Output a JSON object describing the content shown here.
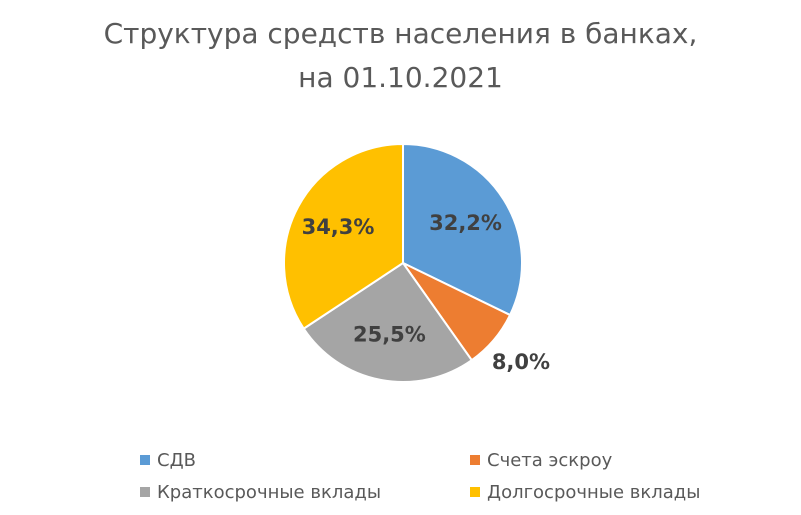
{
  "chart_data": {
    "type": "pie",
    "title": "Структура средств населения в банках, на 01.10.2021",
    "categories": [
      "СДВ",
      "Счета эскроу",
      "Краткосрочные вклады",
      "Долгосрочные вклады"
    ],
    "values": [
      32.2,
      8.0,
      25.5,
      34.3
    ],
    "value_labels": [
      "32,2%",
      "8,0%",
      "25,5%",
      "34,3%"
    ],
    "colors": [
      "#5b9bd5",
      "#ed7d31",
      "#a5a5a5",
      "#ffc000"
    ],
    "legend": "bottom"
  }
}
